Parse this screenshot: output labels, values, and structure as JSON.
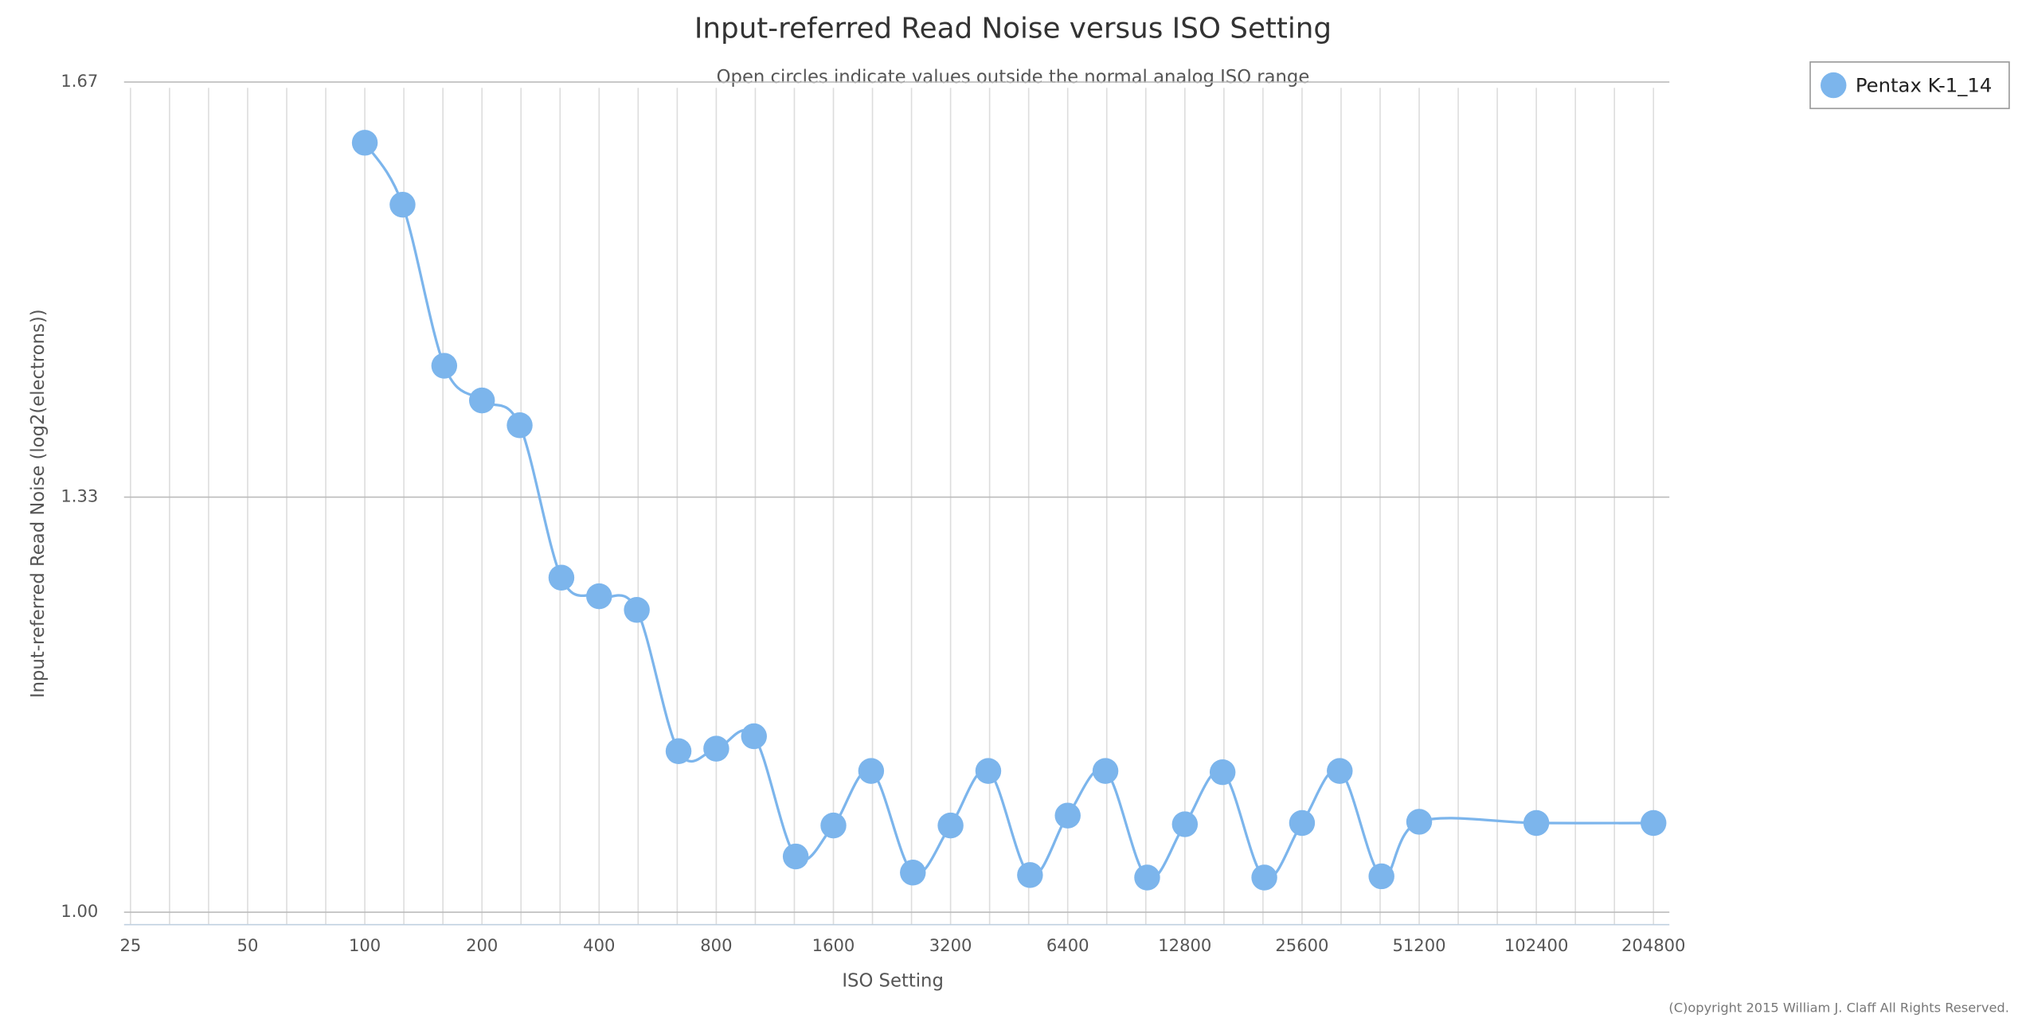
{
  "chart_data": {
    "type": "line",
    "title": "Input-referred Read Noise versus ISO Setting",
    "subtitle": "Open circles indicate values outside the normal analog ISO range",
    "x_label": "ISO Setting",
    "y_label": "Input-referred Read Noise (log2(electrons))",
    "credit": "(C)opyright 2015 William J. Claff All Rights Reserved.",
    "x_scale": "log",
    "grid": true,
    "legend_position": "top-right",
    "x": [
      100,
      125,
      160,
      200,
      250,
      320,
      400,
      500,
      640,
      800,
      1000,
      1280,
      1600,
      2000,
      2560,
      3200,
      4000,
      5120,
      6400,
      8000,
      10240,
      12800,
      16000,
      20480,
      25600,
      32000,
      40960,
      51200,
      102400,
      204800
    ],
    "series": [
      {
        "name": "Pentax K-1_14",
        "color": "#7cb5ec",
        "values": [
          1.621,
          1.571,
          1.441,
          1.413,
          1.393,
          1.27,
          1.255,
          1.244,
          1.13,
          1.132,
          1.142,
          1.045,
          1.07,
          1.114,
          1.032,
          1.07,
          1.114,
          1.03,
          1.078,
          1.114,
          1.028,
          1.071,
          1.113,
          1.028,
          1.072,
          1.114,
          1.029,
          1.073,
          1.072,
          1.072
        ]
      }
    ],
    "xlim": [
      25,
      225000
    ],
    "xticks": [
      25,
      50,
      100,
      200,
      400,
      800,
      1600,
      3200,
      6400,
      12800,
      25600,
      51200,
      102400,
      204800
    ],
    "ylim": [
      0.99,
      1.682
    ],
    "yticks": [
      {
        "value": 1.0,
        "label": "1.00"
      },
      {
        "value": 1.335,
        "label": "1.33"
      },
      {
        "value": 1.67,
        "label": "1.67"
      }
    ]
  }
}
